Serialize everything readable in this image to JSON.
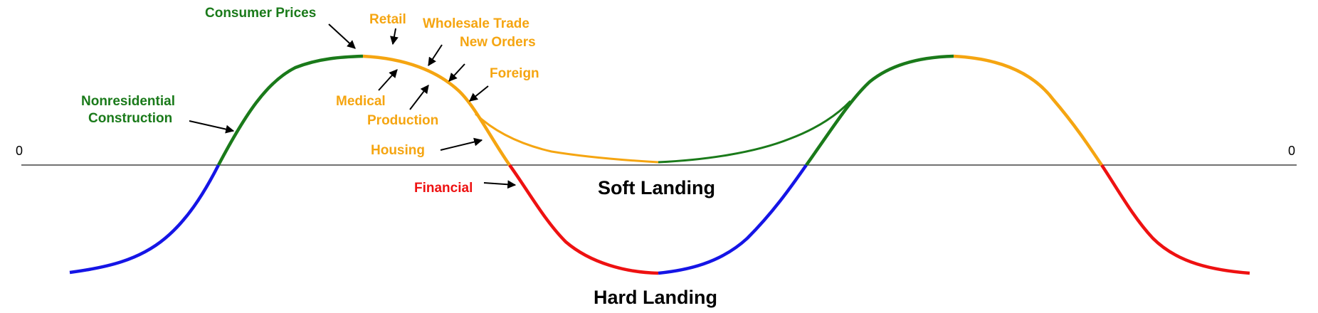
{
  "diagram": {
    "zero_left": "0",
    "zero_right": "0",
    "soft_landing": "Soft Landing",
    "hard_landing": "Hard Landing",
    "labels": {
      "consumer_prices": "Consumer Prices",
      "retail": "Retail",
      "wholesale_trade": "Wholesale Trade",
      "new_orders": "New Orders",
      "foreign": "Foreign",
      "nonresidential_1": "Nonresidential",
      "nonresidential_2": "Construction",
      "medical": "Medical",
      "production": "Production",
      "housing": "Housing",
      "financial": "Financial"
    },
    "colors": {
      "green": "#1a7a1a",
      "orange": "#f5a511",
      "red": "#ee1111",
      "blue": "#1515e6",
      "axis": "#000000"
    }
  }
}
